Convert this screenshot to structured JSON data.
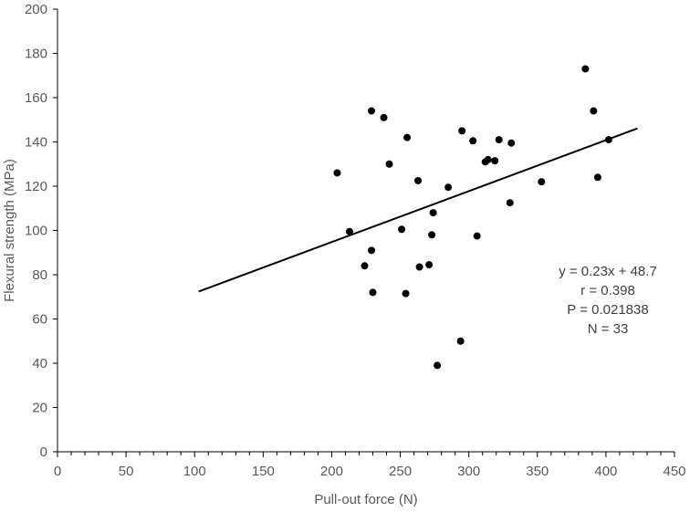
{
  "chart_data": {
    "type": "scatter",
    "xlabel": "Pull-out force (N)",
    "ylabel": "Flexural strength (MPa)",
    "xlim": [
      0,
      450
    ],
    "ylim": [
      0,
      200
    ],
    "x_ticks": [
      "0",
      "50",
      "100",
      "150",
      "200",
      "250",
      "300",
      "350",
      "400",
      "450"
    ],
    "y_ticks": [
      "0",
      "20",
      "40",
      "60",
      "80",
      "100",
      "120",
      "140",
      "160",
      "180",
      "200"
    ],
    "grid": false,
    "series": [
      {
        "points": [
          [
            204,
            126
          ],
          [
            213,
            99.5
          ],
          [
            224,
            84
          ],
          [
            229,
            91
          ],
          [
            229,
            154
          ],
          [
            230,
            72
          ],
          [
            238,
            151
          ],
          [
            242,
            130
          ],
          [
            251,
            100.5
          ],
          [
            254,
            71.5
          ],
          [
            255,
            142
          ],
          [
            263,
            122.5
          ],
          [
            264,
            83.5
          ],
          [
            271,
            84.5
          ],
          [
            273,
            98
          ],
          [
            274,
            108
          ],
          [
            277,
            39
          ],
          [
            285,
            119.5
          ],
          [
            294,
            50
          ],
          [
            295,
            145
          ],
          [
            303,
            140.5
          ],
          [
            306,
            97.5
          ],
          [
            312,
            131
          ],
          [
            314,
            132
          ],
          [
            319,
            131.5
          ],
          [
            322,
            141
          ],
          [
            330,
            112.5
          ],
          [
            331,
            139.5
          ],
          [
            353,
            122
          ],
          [
            385,
            173
          ],
          [
            391,
            154
          ],
          [
            394,
            124
          ],
          [
            402,
            141
          ]
        ],
        "color": "#000000"
      }
    ],
    "trendline": {
      "x": [
        103,
        423
      ],
      "y": [
        72.4,
        146.1
      ],
      "color": "#000000"
    },
    "annotations": [
      "y = 0.23x + 48.7",
      "r = 0.398",
      "P = 0.021838",
      "N = 33"
    ]
  }
}
